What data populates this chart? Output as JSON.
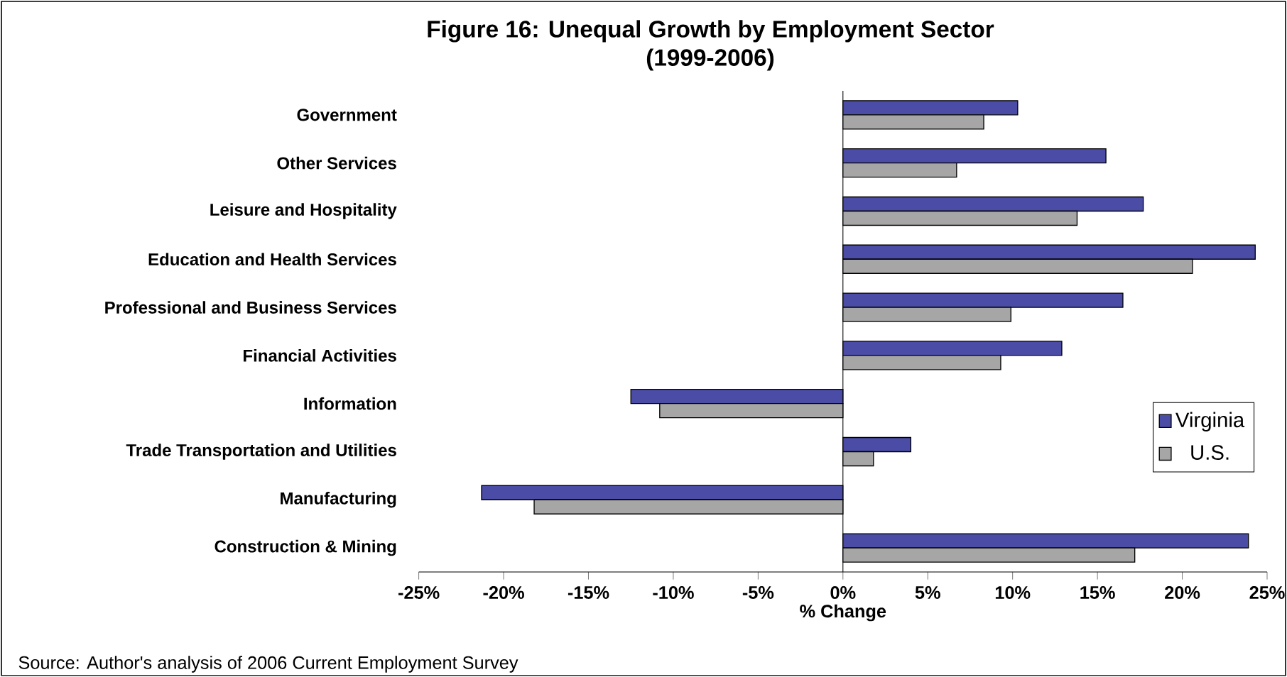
{
  "chart_data": {
    "type": "bar",
    "orientation": "horizontal",
    "title": "Figure 16:  Unequal Growth by Employment Sector",
    "subtitle": "(1999-2006)",
    "xlabel": "% Change",
    "categories": [
      "Government",
      "Other Services",
      "Leisure and Hospitality",
      "Education and Health Services",
      "Professional and Business Services",
      "Financial Activities",
      "Information",
      "Trade Transportation and Utilities",
      "Manufacturing",
      "Construction & Mining"
    ],
    "series": [
      {
        "name": "Virginia",
        "color": "#4a4ca6",
        "values": [
          10.3,
          15.5,
          17.7,
          24.3,
          16.5,
          12.9,
          -12.5,
          4.0,
          -21.3,
          23.9
        ]
      },
      {
        "name": "U.S.",
        "color": "#a6a6a6",
        "values": [
          8.3,
          6.7,
          13.8,
          20.6,
          9.9,
          9.3,
          -10.8,
          1.8,
          -18.2,
          17.2
        ]
      }
    ],
    "xlim": [
      -25,
      25
    ],
    "xticks": [
      {
        "value": -25,
        "label": "-25%"
      },
      {
        "value": -20,
        "label": "-20%"
      },
      {
        "value": -15,
        "label": "-15%"
      },
      {
        "value": -10,
        "label": "-10%"
      },
      {
        "value": -5,
        "label": "-5%"
      },
      {
        "value": 0,
        "label": "0%"
      },
      {
        "value": 5,
        "label": "5%"
      },
      {
        "value": 10,
        "label": "10%"
      },
      {
        "value": 15,
        "label": "15%"
      },
      {
        "value": 20,
        "label": "20%"
      },
      {
        "value": 25,
        "label": "25%"
      }
    ],
    "legend": "right",
    "annotations": [
      "Source:  Author's analysis of 2006 Current Employment Survey"
    ]
  }
}
